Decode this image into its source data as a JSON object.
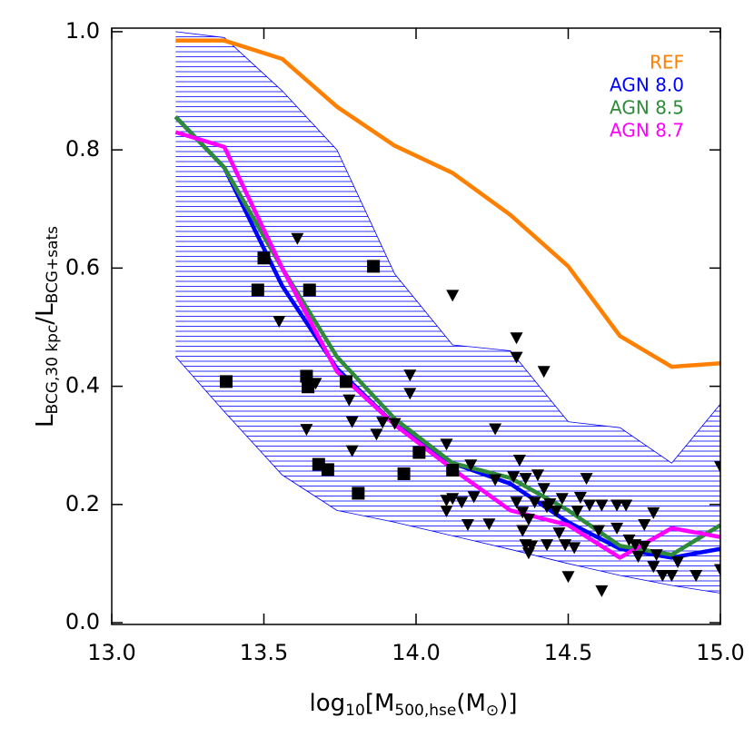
{
  "chart_data": {
    "type": "line",
    "x_label": {
      "a": "log",
      "b": "10",
      "c": "[M",
      "d": "500,hse",
      "e": "(M",
      "f": "⊙",
      "g": ")]"
    },
    "y_label": {
      "a": "L",
      "b": "BCG,30 kpc",
      "c": "/",
      "d": "L",
      "e": "BCG+sats"
    },
    "xlim": [
      13.0,
      15.0
    ],
    "ylim": [
      -0.003,
      1.006
    ],
    "xticks": [
      {
        "value": 13,
        "label": "13.0"
      },
      13.5,
      {
        "value": 14,
        "label": "14.0"
      },
      14.5,
      {
        "value": 15,
        "label": "15.0"
      }
    ],
    "yticks": [
      {
        "value": 0,
        "label": "0.0"
      },
      0.2,
      0.4,
      0.6,
      0.8,
      {
        "value": 1,
        "label": "1.0"
      }
    ],
    "legend": "upper right",
    "x": [
      13.21,
      13.37,
      13.56,
      13.74,
      13.93,
      14.12,
      14.31,
      14.5,
      14.67,
      14.84,
      15.0
    ],
    "band": {
      "color": "#0000ff",
      "upper": [
        1.0,
        0.99,
        0.9,
        0.8,
        0.59,
        0.47,
        0.46,
        0.34,
        0.33,
        0.27,
        0.37
      ],
      "lower": [
        0.45,
        0.357,
        0.25,
        0.19,
        0.17,
        0.147,
        0.124,
        0.1,
        0.08,
        0.063,
        0.05
      ]
    },
    "series": [
      {
        "name": "REF",
        "color": "#ff8000",
        "values": [
          0.985,
          0.985,
          0.954,
          0.873,
          0.807,
          0.761,
          0.69,
          0.603,
          0.485,
          0.433,
          0.439
        ]
      },
      {
        "name": "AGN 8.0",
        "color": "#0000ff",
        "values": [
          0.856,
          0.77,
          0.57,
          0.43,
          0.335,
          0.27,
          0.235,
          0.17,
          0.125,
          0.11,
          0.125
        ]
      },
      {
        "name": "AGN 8.5",
        "color": "#2e8b3a",
        "values": [
          0.856,
          0.77,
          0.6,
          0.45,
          0.345,
          0.27,
          0.245,
          0.19,
          0.13,
          0.115,
          0.165
        ]
      },
      {
        "name": "AGN 8.7",
        "color": "#ff00ff",
        "values": [
          0.83,
          0.805,
          0.6,
          0.425,
          0.335,
          0.26,
          0.19,
          0.165,
          0.11,
          0.16,
          0.145
        ]
      }
    ],
    "points": [
      {
        "marker": "square",
        "color": "#000000",
        "x": [
          13.376,
          13.48,
          13.5,
          13.65,
          13.64,
          13.645,
          13.68,
          13.71,
          13.77,
          13.81,
          13.86,
          13.96,
          14.01,
          14.12
        ],
        "y": [
          0.408,
          0.563,
          0.617,
          0.563,
          0.417,
          0.399,
          0.268,
          0.259,
          0.408,
          0.219,
          0.603,
          0.252,
          0.288,
          0.258
        ]
      },
      {
        "marker": "triangle-down",
        "color": "#000000",
        "x": [
          13.61,
          13.55,
          13.64,
          13.67,
          13.64,
          13.79,
          13.78,
          13.79,
          13.87,
          13.89,
          13.98,
          13.98,
          13.93,
          14.12,
          14.33,
          14.33,
          14.42,
          14.1,
          14.1,
          14.12,
          14.19,
          14.1,
          14.15,
          14.17,
          14.24,
          14.26,
          14.18,
          14.26,
          14.32,
          14.34,
          14.36,
          14.4,
          14.42,
          14.39,
          14.43,
          14.33,
          14.35,
          14.35,
          14.37,
          14.36,
          14.37,
          14.38,
          14.43,
          14.48,
          14.44,
          14.46,
          14.53,
          14.47,
          14.5,
          14.49,
          14.52,
          14.54,
          14.56,
          14.57,
          14.61,
          14.66,
          14.69,
          14.6,
          14.66,
          14.7,
          14.75,
          14.75,
          14.78,
          14.81,
          14.84,
          14.86,
          14.92,
          15.0,
          15.0,
          14.61,
          14.73,
          14.79,
          14.72,
          14.78
        ],
        "y": [
          0.65,
          0.51,
          0.405,
          0.405,
          0.327,
          0.291,
          0.377,
          0.34,
          0.319,
          0.339,
          0.419,
          0.388,
          0.337,
          0.554,
          0.482,
          0.449,
          0.425,
          0.302,
          0.207,
          0.21,
          0.213,
          0.189,
          0.204,
          0.166,
          0.167,
          0.242,
          0.267,
          0.328,
          0.247,
          0.275,
          0.244,
          0.25,
          0.227,
          0.204,
          0.196,
          0.204,
          0.187,
          0.156,
          0.175,
          0.132,
          0.118,
          0.13,
          0.132,
          0.21,
          0.201,
          0.189,
          0.189,
          0.152,
          0.078,
          0.132,
          0.127,
          0.212,
          0.244,
          0.199,
          0.199,
          0.199,
          0.199,
          0.156,
          0.16,
          0.14,
          0.166,
          0.129,
          0.095,
          0.08,
          0.08,
          0.103,
          0.08,
          0.264,
          0.09,
          0.054,
          0.112,
          0.115,
          0.132,
          0.186
        ]
      }
    ]
  }
}
